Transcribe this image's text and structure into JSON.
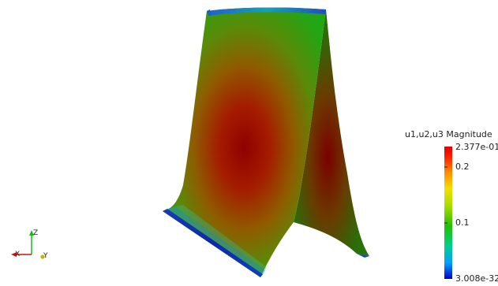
{
  "colorbar": {
    "title": "u1,u2,u3 Magnitude",
    "max_label": "2.377e-01",
    "min_label": "3.008e-32",
    "tick_labels": [
      "0.2",
      "0.1"
    ],
    "max_value": 0.2377,
    "min_value": 3.008e-32,
    "tick_values": [
      0.2,
      0.1
    ],
    "colormap": [
      "#0000c0",
      "#00a0ff",
      "#00d08a",
      "#22c000",
      "#a8dc00",
      "#f0e000",
      "#ff9000",
      "#ff2000",
      "#e00000"
    ]
  },
  "axes": {
    "x_label": "X",
    "y_label": "Y",
    "z_label": "Z",
    "x_color": "#d01010",
    "y_color": "#d0b000",
    "z_color": "#10c010"
  },
  "surface": {
    "peak_color": "#8f0000",
    "mid_color": "#3a9a10",
    "edge_color": "#0a2aa8"
  }
}
